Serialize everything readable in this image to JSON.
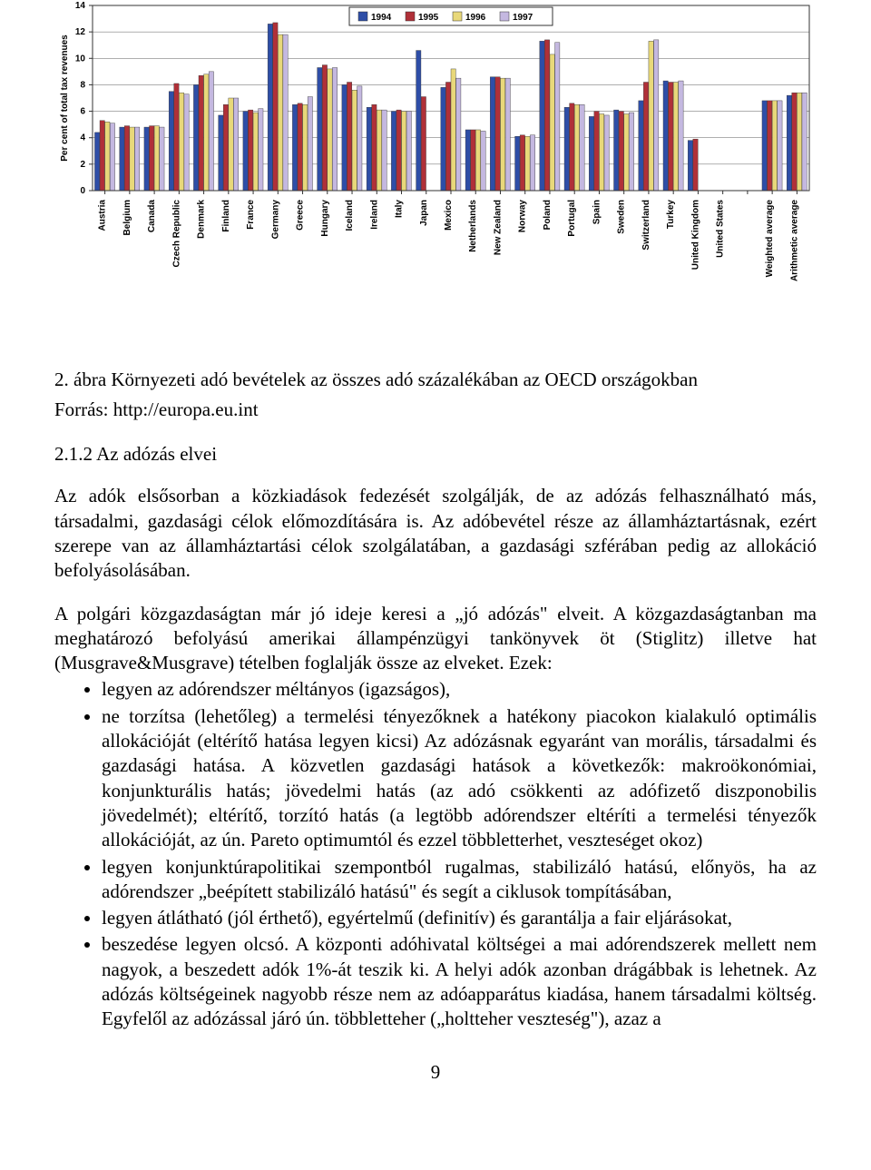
{
  "chart": {
    "type": "bar",
    "ylabel": "Per cent of total tax revenues",
    "ylabel_fontsize": 10,
    "ylim": [
      0,
      14
    ],
    "ytick_step": 2,
    "yticks": [
      0,
      2,
      4,
      6,
      8,
      10,
      12,
      14
    ],
    "background_color": "#ffffff",
    "grid_color": "#7f7f7f",
    "border_color": "#333333",
    "bar_border_color": "#333333",
    "bar_group_width": 0.82,
    "legend": {
      "position": "top-center",
      "border_color": "#333333",
      "items": [
        {
          "label": "1994",
          "color": "#2e4ea7"
        },
        {
          "label": "1995",
          "color": "#b03038"
        },
        {
          "label": "1996",
          "color": "#e8d87a"
        },
        {
          "label": "1997",
          "color": "#c4b8e0"
        }
      ]
    },
    "categories": [
      "Austria",
      "Belgium",
      "Canada",
      "Czech Republic",
      "Denmark",
      "Finland",
      "France",
      "Germany",
      "Greece",
      "Hungary",
      "Iceland",
      "Ireland",
      "Italy",
      "Japan",
      "Mexico",
      "Netherlands",
      "New Zealand",
      "Norway",
      "Poland",
      "Portugal",
      "Spain",
      "Sweden",
      "Switzerland",
      "Turkey",
      "United Kingdom",
      "United States",
      "",
      "Weighted average",
      "Arithmetic average"
    ],
    "series": [
      {
        "name": "1994",
        "color": "#2e4ea7",
        "values": [
          4.4,
          4.8,
          4.8,
          7.5,
          8.0,
          5.7,
          6.0,
          12.6,
          6.5,
          9.3,
          8.0,
          6.3,
          6.0,
          10.6,
          7.8,
          4.6,
          8.6,
          4.1,
          11.3,
          6.3,
          5.6,
          6.1,
          6.8,
          8.3,
          3.8,
          null,
          null,
          6.8,
          7.2
        ]
      },
      {
        "name": "1995",
        "color": "#b03038",
        "values": [
          5.3,
          4.9,
          4.9,
          8.1,
          8.7,
          6.5,
          6.1,
          12.7,
          6.6,
          9.5,
          8.2,
          6.5,
          6.1,
          7.1,
          8.2,
          4.6,
          8.6,
          4.2,
          11.4,
          6.6,
          6.0,
          6.0,
          8.2,
          8.2,
          3.9,
          null,
          null,
          6.8,
          7.4
        ]
      },
      {
        "name": "1996",
        "color": "#e8d87a",
        "values": [
          5.2,
          4.8,
          4.9,
          7.4,
          8.8,
          7.0,
          5.9,
          11.8,
          6.5,
          9.2,
          7.6,
          6.1,
          6.0,
          null,
          9.2,
          4.6,
          8.5,
          4.1,
          10.3,
          6.5,
          5.8,
          5.8,
          11.3,
          8.2,
          null,
          null,
          null,
          6.8,
          7.4
        ]
      },
      {
        "name": "1997",
        "color": "#c4b8e0",
        "values": [
          5.1,
          4.8,
          4.8,
          7.3,
          9.0,
          7.0,
          6.2,
          11.8,
          7.1,
          9.3,
          7.9,
          6.1,
          6.0,
          null,
          8.5,
          4.5,
          8.5,
          4.2,
          11.2,
          6.5,
          5.7,
          5.9,
          11.4,
          8.3,
          null,
          null,
          null,
          6.8,
          7.4
        ]
      }
    ],
    "label_fontsize": 10
  },
  "caption": "2. ábra Környezeti adó bevételek az összes adó százalékában az OECD országokban",
  "source": "Forrás: http://europa.eu.int",
  "section": "2.1.2   Az adózás elvei",
  "para1": "Az adók elsősorban a közkiadások fedezését szolgálják, de az adózás felhasználható más, társadalmi, gazdasági célok előmozdítására is. Az adóbevétel része az államháztartásnak, ezért szerepe van az államháztartási célok szolgálatában, a gazdasági szférában pedig az allokáció befolyásolásában.",
  "para2_start": "A polgári közgazdaságtan már jó ideje keresi a „jó adózás\" elveit. A közgazdaságtanban ma meghatározó befolyású amerikai állampénzügyi tankönyvek öt (Stiglitz) illetve hat (Musgrave&Musgrave) tételben foglalják össze az elveket. Ezek:",
  "bullets": [
    "legyen az adórendszer méltányos (igazságos),",
    "ne torzítsa (lehetőleg) a termelési tényezőknek a hatékony piacokon kialakuló optimális allokációját (eltérítő hatása legyen kicsi) Az adózásnak egyaránt van morális, társadalmi és gazdasági hatása. A közvetlen gazdasági hatások a következők: makroökonómiai, konjunkturális hatás; jövedelmi hatás (az adó csökkenti az adófizető diszponobilis jövedelmét); eltérítő, torzító hatás (a legtöbb adórendszer eltéríti a termelési tényezők allokációját, az ún. Pareto optimumtól és ezzel többletterhet, veszteséget okoz)",
    "legyen konjunktúrapolitikai szempontból rugalmas, stabilizáló hatású, előnyös, ha az adórendszer „beépített stabilizáló hatású\" és segít a ciklusok tompításában,",
    "legyen átlátható (jól érthető), egyértelmű (definitív) és garantálja a fair eljárásokat,",
    "beszedése legyen olcsó. A központi adóhivatal költségei a mai adórendszerek mellett nem nagyok, a beszedett adók 1%-át teszik ki. A helyi adók azonban drágábbak is lehetnek. Az adózás költségeinek nagyobb része nem az adóapparátus kiadása, hanem társadalmi költség. Egyfelől az adózással járó ún. többletteher („holtteher veszteség\"), azaz a"
  ],
  "page_number": "9"
}
